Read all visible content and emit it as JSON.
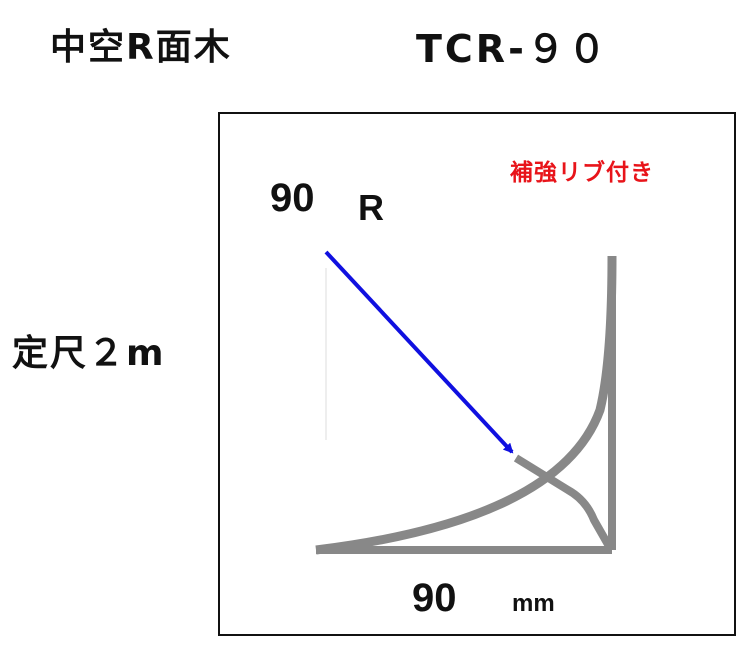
{
  "header": {
    "title": "中空R面木",
    "model": "TCR-９０"
  },
  "length_label": "定尺２m",
  "drawing": {
    "note": "補強リブ付き",
    "radius_value": "90",
    "radius_symbol": "R",
    "width_value": "90",
    "width_unit": "mm",
    "colors": {
      "profile": "#888888",
      "arrow": "#1010e0",
      "note": "#e8141a",
      "frame": "#111111"
    }
  }
}
